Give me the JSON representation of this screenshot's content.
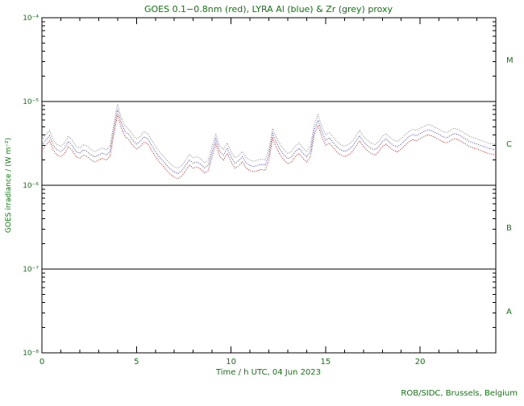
{
  "credit": "ROB/SIDC, Brussels, Belgium",
  "colors": {
    "text": "#117711",
    "axis": "#000000",
    "red": "#cc2222",
    "blue": "#4444bb",
    "grey": "#8a8a8a"
  },
  "chart_data": {
    "type": "line",
    "title": "GOES 0.1−0.8nm (red), LYRA Al (blue) & Zr (grey) proxy",
    "xlabel": "Time / h UTC, 04 Jun 2023",
    "ylabel": "GOES irradiance / (W m⁻²)",
    "x_range": [
      0,
      24
    ],
    "y_log10_range": [
      -8,
      -4
    ],
    "x_major_ticks": [
      0,
      5,
      10,
      15,
      20
    ],
    "x_tick_labels": [
      "0",
      "5",
      "10",
      "15",
      "20"
    ],
    "x_minor_step": 1,
    "y_decade_ticks": [
      -4,
      -5,
      -6,
      -7,
      -8
    ],
    "y_tick_labels": [
      "10⁻⁴",
      "10⁻⁵",
      "10⁻⁶",
      "10⁻⁷",
      "10⁻⁸"
    ],
    "class_boundaries_log10": [
      -5,
      -6,
      -7
    ],
    "flare_classes": [
      {
        "label": "M",
        "log10_mid": -4.5
      },
      {
        "label": "C",
        "log10_mid": -5.5
      },
      {
        "label": "B",
        "log10_mid": -6.5
      },
      {
        "label": "A",
        "log10_mid": -7.5
      }
    ],
    "grid": false,
    "legend": "in-title",
    "sample_step_h": 0.2,
    "units": "1e-6 W m^-2",
    "series": [
      {
        "name": "GOES 0.1-0.8nm",
        "color_key": "red",
        "values": [
          2.6,
          3.0,
          3.4,
          2.6,
          2.3,
          2.2,
          2.4,
          2.9,
          2.6,
          2.2,
          2.1,
          2.3,
          2.2,
          2.0,
          1.9,
          2.0,
          2.1,
          2.0,
          2.2,
          4.0,
          7.0,
          4.8,
          3.8,
          3.5,
          3.0,
          2.7,
          2.9,
          3.3,
          3.1,
          2.6,
          2.2,
          1.9,
          1.7,
          1.5,
          1.35,
          1.25,
          1.2,
          1.3,
          1.5,
          1.75,
          1.6,
          1.65,
          1.55,
          1.4,
          1.5,
          2.2,
          3.1,
          2.2,
          2.0,
          2.4,
          1.9,
          1.6,
          1.7,
          1.9,
          1.6,
          1.5,
          1.45,
          1.5,
          1.55,
          1.5,
          2.0,
          3.6,
          2.8,
          2.3,
          2.0,
          1.8,
          1.9,
          2.2,
          2.4,
          2.1,
          1.9,
          2.2,
          4.0,
          5.2,
          3.8,
          3.0,
          3.2,
          2.8,
          2.5,
          2.3,
          2.2,
          2.3,
          2.5,
          2.9,
          3.4,
          2.9,
          2.6,
          2.4,
          2.3,
          2.5,
          2.9,
          3.1,
          2.8,
          2.6,
          2.5,
          2.7,
          3.0,
          3.3,
          3.5,
          3.4,
          3.6,
          3.8,
          4.0,
          3.9,
          3.7,
          3.5,
          3.3,
          3.2,
          3.4,
          3.6,
          3.5,
          3.3,
          3.1,
          2.9,
          2.8,
          2.7,
          2.6,
          2.5,
          2.4,
          2.35,
          2.3
        ]
      },
      {
        "name": "LYRA Al proxy",
        "color_key": "blue",
        "values": [
          2.99,
          3.45,
          3.91,
          2.99,
          2.65,
          2.53,
          2.76,
          3.34,
          2.99,
          2.53,
          2.42,
          2.65,
          2.53,
          2.3,
          2.19,
          2.3,
          2.42,
          2.3,
          2.53,
          4.6,
          8.05,
          5.52,
          4.37,
          4.03,
          3.45,
          3.11,
          3.34,
          3.8,
          3.57,
          2.99,
          2.53,
          2.19,
          1.96,
          1.73,
          1.55,
          1.44,
          1.38,
          1.5,
          1.73,
          2.01,
          1.84,
          1.9,
          1.78,
          1.61,
          1.73,
          2.53,
          3.57,
          2.53,
          2.3,
          2.76,
          2.19,
          1.84,
          1.96,
          2.19,
          1.84,
          1.73,
          1.67,
          1.73,
          1.78,
          1.73,
          2.3,
          4.14,
          3.22,
          2.65,
          2.3,
          2.07,
          2.19,
          2.53,
          2.76,
          2.42,
          2.19,
          2.53,
          4.6,
          5.98,
          4.37,
          3.45,
          3.68,
          3.22,
          2.88,
          2.65,
          2.53,
          2.65,
          2.88,
          3.34,
          3.91,
          3.34,
          2.99,
          2.76,
          2.65,
          2.88,
          3.34,
          3.57,
          3.22,
          2.99,
          2.88,
          3.11,
          3.45,
          3.8,
          4.03,
          3.91,
          4.14,
          4.37,
          4.6,
          4.49,
          4.26,
          4.03,
          3.8,
          3.68,
          3.91,
          4.14,
          4.03,
          3.8,
          3.57,
          3.34,
          3.22,
          3.11,
          2.99,
          2.88,
          2.76,
          2.7,
          2.65
        ]
      },
      {
        "name": "LYRA Zr proxy",
        "color_key": "grey",
        "values": [
          3.46,
          3.99,
          4.52,
          3.46,
          3.06,
          2.93,
          3.19,
          3.86,
          3.46,
          2.93,
          2.79,
          3.06,
          2.93,
          2.66,
          2.53,
          2.66,
          2.79,
          2.66,
          2.93,
          5.32,
          9.31,
          6.38,
          5.05,
          4.66,
          3.99,
          3.59,
          3.86,
          4.39,
          4.12,
          3.46,
          2.93,
          2.53,
          2.26,
          2.0,
          1.8,
          1.66,
          1.6,
          1.73,
          2.0,
          2.33,
          2.13,
          2.19,
          2.06,
          1.86,
          2.0,
          2.93,
          4.12,
          2.93,
          2.66,
          3.19,
          2.53,
          2.13,
          2.26,
          2.53,
          2.13,
          2.0,
          1.93,
          2.0,
          2.06,
          2.0,
          2.66,
          4.79,
          3.72,
          3.06,
          2.66,
          2.39,
          2.53,
          2.93,
          3.19,
          2.79,
          2.53,
          2.93,
          5.32,
          6.92,
          5.05,
          3.99,
          4.26,
          3.72,
          3.33,
          3.06,
          2.93,
          3.06,
          3.33,
          3.86,
          4.52,
          3.86,
          3.46,
          3.19,
          3.06,
          3.33,
          3.86,
          4.12,
          3.72,
          3.46,
          3.33,
          3.59,
          3.99,
          4.39,
          4.66,
          4.52,
          4.79,
          5.05,
          5.32,
          5.19,
          4.92,
          4.66,
          4.39,
          4.26,
          4.52,
          4.79,
          4.66,
          4.39,
          4.12,
          3.86,
          3.72,
          3.59,
          3.46,
          3.33,
          3.19,
          3.13,
          3.06
        ]
      }
    ]
  }
}
